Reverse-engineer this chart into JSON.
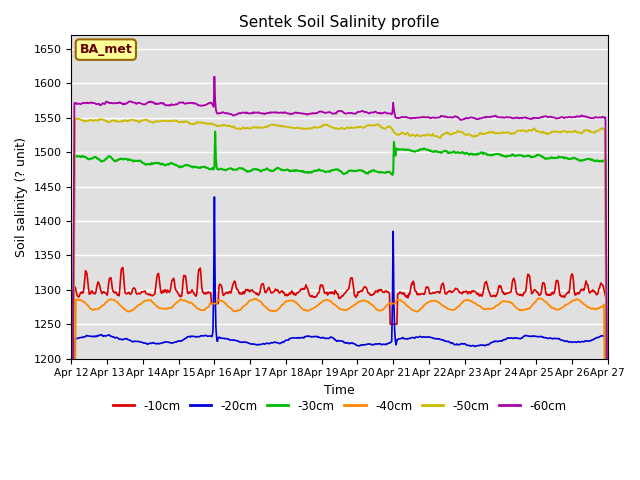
{
  "title": "Sentek Soil Salinity profile",
  "xlabel": "Time",
  "ylabel": "Soil salinity (? unit)",
  "ylim": [
    1200,
    1670
  ],
  "xlim": [
    0,
    360
  ],
  "annotation": "BA_met",
  "bg_color": "#e0e0e0",
  "legend_labels": [
    "-10cm",
    "-20cm",
    "-30cm",
    "-40cm",
    "-50cm",
    "-60cm"
  ],
  "legend_colors": [
    "#dd0000",
    "#0000dd",
    "#00bb00",
    "#ff8800",
    "#ccbb00",
    "#aa00aa"
  ],
  "xtick_positions": [
    0,
    24,
    48,
    72,
    96,
    120,
    144,
    168,
    192,
    216,
    240,
    264,
    288,
    312,
    336,
    360
  ],
  "xtick_labels": [
    "Apr 12",
    "Apr 13",
    "Apr 14",
    "Apr 15",
    "Apr 16",
    "Apr 17",
    "Apr 18",
    "Apr 19",
    "Apr 20",
    "Apr 21",
    "Apr 22",
    "Apr 23",
    "Apr 24",
    "Apr 25",
    "Apr 26",
    "Apr 27"
  ],
  "ytick_positions": [
    1200,
    1250,
    1300,
    1350,
    1400,
    1450,
    1500,
    1550,
    1600,
    1650
  ],
  "figsize": [
    6.4,
    4.8
  ],
  "dpi": 100
}
